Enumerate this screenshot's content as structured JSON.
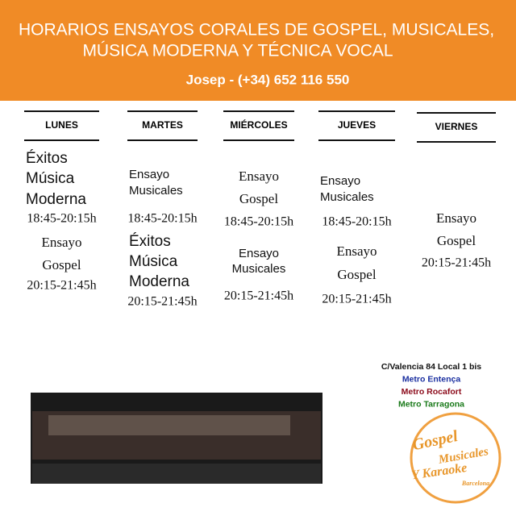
{
  "header": {
    "title_lines": [
      "HORARIOS ENSAYOS CORALES DE GOSPEL, MUSICALES,",
      "MÚSICA MODERNA Y TÉCNICA VOCAL"
    ],
    "contact": "Josep - (+34) 652 116 550"
  },
  "schedule": [
    {
      "day": "LUNES",
      "entries": [
        "Éxitos",
        "Música",
        "Moderna",
        "18:45-20:15h",
        "Ensayo",
        "Gospel",
        "20:15-21:45h"
      ]
    },
    {
      "day": "MARTES",
      "entries": [
        "Ensayo",
        "Musicales",
        "18:45-20:15h",
        "Éxitos",
        "Música",
        "Moderna",
        "20:15-21:45h"
      ]
    },
    {
      "day": "MIÉRCOLES",
      "entries": [
        "Ensayo",
        "Gospel",
        "18:45-20:15h",
        "Ensayo",
        "Musicales",
        "20:15-21:45h"
      ]
    },
    {
      "day": "JUEVES",
      "entries": [
        "Ensayo",
        "Musicales",
        "18:45-20:15h",
        "Ensayo",
        "Gospel",
        "20:15-21:45h"
      ]
    },
    {
      "day": "VIERNES",
      "entries": [
        "Ensayo",
        "Gospel",
        "20:15-21:45h"
      ]
    }
  ],
  "address": [
    "C/Valencia 84 Local 1 bis",
    "Metro Entença",
    "Metro Rocafort",
    "Metro Tarragona"
  ],
  "logo": [
    "Gospel",
    "Musicales",
    "Y Karaoke",
    "Barcelona"
  ]
}
